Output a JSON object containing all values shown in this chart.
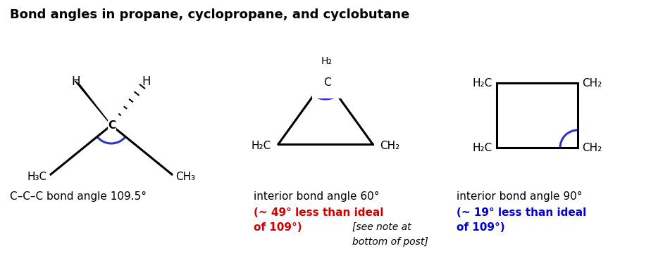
{
  "title": "Bond angles in propane, cyclopropane, and cyclobutane",
  "title_fontsize": 13,
  "background_color": "#ffffff",
  "text_color": "#000000",
  "red_color": "#cc0000",
  "blue_color": "#0000cc",
  "propane_label": "C–C–C bond angle 109.5°",
  "cyclopropane_label": "interior bond angle 60°",
  "cyclobutane_label": "interior bond angle 90°",
  "cyclopropane_strain_line1": "(~ 49° less than ideal",
  "cyclopropane_strain_line2": "of 109°)",
  "cyclopropane_note": "[see note at\nbottom of post]",
  "cyclobutane_strain_line1": "(~ 19° less than ideal",
  "cyclobutane_strain_line2": "of 109°)"
}
